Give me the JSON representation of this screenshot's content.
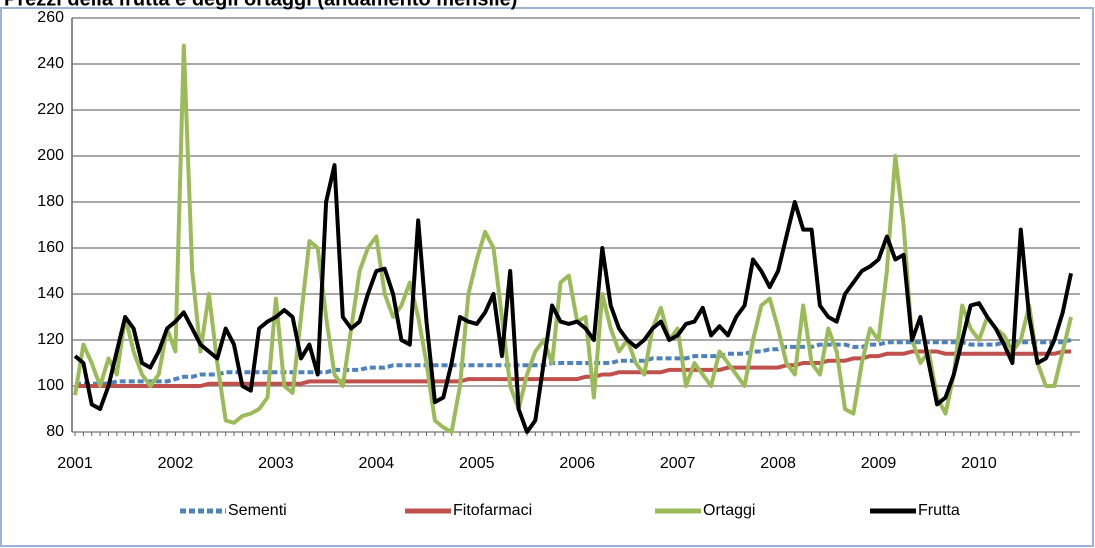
{
  "chart_data": {
    "type": "line",
    "title": "Prezzi della frutta e degli ortaggi (andamento mensile)",
    "categories": [
      "2001",
      null,
      null,
      null,
      null,
      null,
      null,
      null,
      null,
      null,
      null,
      null,
      "2002",
      null,
      null,
      null,
      null,
      null,
      null,
      null,
      null,
      null,
      null,
      null,
      "2003",
      null,
      null,
      null,
      null,
      null,
      null,
      null,
      null,
      null,
      null,
      null,
      "2004",
      null,
      null,
      null,
      null,
      null,
      null,
      null,
      null,
      null,
      null,
      null,
      "2005",
      null,
      null,
      null,
      null,
      null,
      null,
      null,
      null,
      null,
      null,
      null,
      "2006",
      null,
      null,
      null,
      null,
      null,
      null,
      null,
      null,
      null,
      null,
      null,
      "2007",
      null,
      null,
      null,
      null,
      null,
      null,
      null,
      null,
      null,
      null,
      null,
      "2008",
      null,
      null,
      null,
      null,
      null,
      null,
      null,
      null,
      null,
      null,
      null,
      "2009",
      null,
      null,
      null,
      null,
      null,
      null,
      null,
      null,
      null,
      null,
      null,
      "2010",
      null,
      null,
      null,
      null,
      null,
      null,
      null,
      null,
      null,
      null,
      null
    ],
    "ylim": [
      80,
      260
    ],
    "yticks": [
      80,
      100,
      120,
      140,
      160,
      180,
      200,
      220,
      240,
      260
    ],
    "grid": true,
    "legend": "bottom",
    "series": [
      {
        "name": "Sementi",
        "color": "#4f81bd",
        "dashed": true,
        "values": [
          101,
          101,
          101,
          101,
          101,
          102,
          102,
          102,
          102,
          102,
          102,
          102,
          103,
          104,
          104,
          105,
          105,
          105,
          106,
          106,
          106,
          106,
          106,
          106,
          106,
          106,
          106,
          106,
          106,
          106,
          106,
          107,
          107,
          107,
          107,
          108,
          108,
          108,
          109,
          109,
          109,
          109,
          109,
          109,
          109,
          109,
          109,
          109,
          109,
          109,
          109,
          109,
          109,
          109,
          109,
          109,
          109,
          110,
          110,
          110,
          110,
          110,
          110,
          110,
          110,
          111,
          111,
          111,
          111,
          112,
          112,
          112,
          112,
          112,
          113,
          113,
          113,
          113,
          114,
          114,
          114,
          115,
          115,
          116,
          116,
          117,
          117,
          117,
          117,
          118,
          118,
          118,
          118,
          117,
          117,
          118,
          118,
          119,
          119,
          119,
          119,
          119,
          119,
          119,
          119,
          119,
          119,
          118,
          118,
          118,
          118,
          119,
          119,
          119,
          119,
          119,
          119,
          119,
          119,
          120
        ]
      },
      {
        "name": "Fitofarmaci",
        "color": "#c0504d",
        "dashed": false,
        "values": [
          100,
          100,
          100,
          100,
          100,
          100,
          100,
          100,
          100,
          100,
          100,
          100,
          100,
          100,
          100,
          100,
          101,
          101,
          101,
          101,
          101,
          101,
          101,
          101,
          101,
          101,
          101,
          101,
          102,
          102,
          102,
          102,
          102,
          102,
          102,
          102,
          102,
          102,
          102,
          102,
          102,
          102,
          102,
          102,
          102,
          102,
          102,
          103,
          103,
          103,
          103,
          103,
          103,
          103,
          103,
          103,
          103,
          103,
          103,
          103,
          103,
          104,
          104,
          105,
          105,
          106,
          106,
          106,
          106,
          106,
          106,
          107,
          107,
          107,
          107,
          107,
          107,
          107,
          108,
          108,
          108,
          108,
          108,
          108,
          108,
          109,
          109,
          110,
          110,
          110,
          111,
          111,
          111,
          112,
          112,
          113,
          113,
          114,
          114,
          114,
          115,
          115,
          115,
          115,
          114,
          114,
          114,
          114,
          114,
          114,
          114,
          114,
          114,
          114,
          114,
          114,
          114,
          114,
          115,
          115
        ]
      },
      {
        "name": "Ortaggi",
        "color": "#9bbb59",
        "dashed": false,
        "values": [
          96,
          118,
          110,
          100,
          112,
          105,
          130,
          115,
          105,
          100,
          105,
          125,
          115,
          248,
          150,
          115,
          140,
          110,
          85,
          84,
          87,
          88,
          90,
          95,
          138,
          100,
          97,
          130,
          163,
          160,
          130,
          105,
          100,
          125,
          150,
          160,
          165,
          140,
          130,
          135,
          145,
          130,
          110,
          85,
          82,
          80,
          100,
          140,
          155,
          167,
          160,
          130,
          100,
          90,
          105,
          115,
          120,
          110,
          145,
          148,
          128,
          130,
          95,
          140,
          125,
          115,
          120,
          110,
          105,
          125,
          134,
          120,
          125,
          100,
          110,
          105,
          100,
          115,
          110,
          105,
          100,
          120,
          135,
          138,
          125,
          110,
          105,
          135,
          110,
          105,
          125,
          115,
          90,
          88,
          110,
          125,
          120,
          150,
          200,
          170,
          120,
          110,
          115,
          95,
          88,
          105,
          135,
          125,
          120,
          130,
          125,
          122,
          115,
          120,
          135,
          110,
          100,
          100,
          115,
          130
        ]
      },
      {
        "name": "Frutta",
        "color": "#000000",
        "dashed": false,
        "values": [
          113,
          110,
          92,
          90,
          100,
          115,
          130,
          125,
          110,
          108,
          115,
          125,
          128,
          132,
          125,
          118,
          115,
          112,
          125,
          118,
          100,
          98,
          125,
          128,
          130,
          133,
          130,
          112,
          118,
          105,
          180,
          196,
          130,
          125,
          128,
          140,
          150,
          151,
          140,
          120,
          118,
          172,
          128,
          93,
          95,
          110,
          130,
          128,
          127,
          132,
          140,
          113,
          150,
          90,
          80,
          85,
          110,
          135,
          128,
          127,
          128,
          125,
          120,
          160,
          135,
          125,
          120,
          117,
          120,
          125,
          128,
          120,
          122,
          127,
          128,
          134,
          122,
          126,
          122,
          130,
          135,
          155,
          150,
          143,
          150,
          165,
          180,
          168,
          168,
          135,
          130,
          128,
          140,
          145,
          150,
          152,
          155,
          165,
          155,
          157,
          120,
          130,
          110,
          92,
          95,
          105,
          120,
          135,
          136,
          130,
          125,
          118,
          110,
          168,
          130,
          110,
          112,
          120,
          132,
          149
        ]
      }
    ]
  }
}
